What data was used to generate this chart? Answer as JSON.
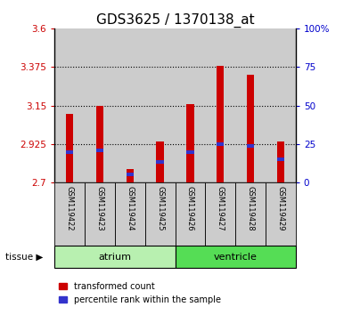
{
  "title": "GDS3625 / 1370138_at",
  "samples": [
    "GSM119422",
    "GSM119423",
    "GSM119424",
    "GSM119425",
    "GSM119426",
    "GSM119427",
    "GSM119428",
    "GSM119429"
  ],
  "red_values": [
    3.1,
    3.15,
    2.78,
    2.94,
    3.16,
    3.38,
    3.33,
    2.94
  ],
  "blue_values": [
    2.88,
    2.89,
    2.75,
    2.82,
    2.88,
    2.925,
    2.915,
    2.835
  ],
  "ymin": 2.7,
  "ymax": 3.6,
  "yticks": [
    2.7,
    2.925,
    3.15,
    3.375,
    3.6
  ],
  "ytick_labels": [
    "2.7",
    "2.925",
    "3.15",
    "3.375",
    "3.6"
  ],
  "right_yticks": [
    0,
    25,
    50,
    75,
    100
  ],
  "right_ytick_labels": [
    "0",
    "25",
    "50",
    "75",
    "100%"
  ],
  "bar_bottom": 2.7,
  "groups": [
    {
      "label": "atrium",
      "start": 0,
      "end": 4,
      "color": "#b8f0b0",
      "edge_color": "#44bb44"
    },
    {
      "label": "ventricle",
      "start": 4,
      "end": 8,
      "color": "#55dd55",
      "edge_color": "#33aa33"
    }
  ],
  "tissue_label": "tissue",
  "red_color": "#cc0000",
  "blue_color": "#3333cc",
  "grid_color": "#000000",
  "title_fontsize": 11,
  "axis_label_color_left": "#cc0000",
  "axis_label_color_right": "#0000cc",
  "sample_bg_color": "#cccccc",
  "bar_width": 0.25,
  "blue_bar_height": 0.022,
  "legend_items": [
    "transformed count",
    "percentile rank within the sample"
  ]
}
